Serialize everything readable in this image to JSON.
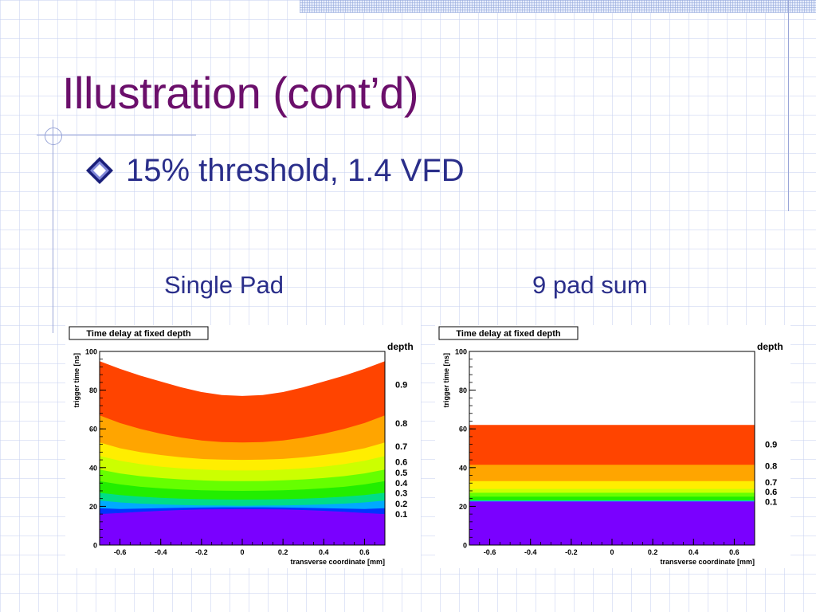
{
  "slide": {
    "title": "Illustration (cont’d)",
    "bullet": "15% threshold, 1.4 VFD",
    "caption_left": "Single Pad",
    "caption_right": "9 pad sum"
  },
  "colors": {
    "title": "#6b0f6b",
    "text": "#2a2e8a",
    "grid": "#c8d2f0"
  },
  "chart_data": [
    {
      "type": "area",
      "title": "Time delay at fixed depth",
      "xlabel": "transverse coordinate [mm]",
      "ylabel": "trigger time [ns]",
      "legend_title": "depth",
      "xlim": [
        -0.7,
        0.7
      ],
      "ylim": [
        0,
        100
      ],
      "xticks": [
        -0.6,
        -0.4,
        -0.2,
        0,
        0.2,
        0.4,
        0.6
      ],
      "xtick_labels": [
        "-0.6",
        "-0.4",
        "-0.2",
        "0",
        "0.2",
        "0.4",
        "0.6"
      ],
      "yticks": [
        0,
        20,
        40,
        60,
        80,
        100
      ],
      "ytick_labels": [
        "0",
        "20",
        "40",
        "60",
        "80",
        "100"
      ],
      "x": [
        -0.7,
        -0.6,
        -0.5,
        -0.4,
        -0.3,
        -0.2,
        -0.1,
        0,
        0.1,
        0.2,
        0.3,
        0.4,
        0.5,
        0.6,
        0.7
      ],
      "series": [
        {
          "name": "0.9",
          "color": "#ff4400",
          "top": [
            95,
            91,
            87.5,
            84.5,
            81.5,
            79,
            77.5,
            77,
            77.5,
            79,
            81.5,
            84.5,
            87.5,
            91,
            95
          ]
        },
        {
          "name": "0.8",
          "color": "#ffa500",
          "top": [
            67,
            63,
            60,
            57.5,
            55.5,
            54,
            53.2,
            53,
            53.2,
            54,
            55.5,
            57.5,
            60,
            63,
            67
          ]
        },
        {
          "name": "0.7",
          "color": "#ffee00",
          "top": [
            53,
            50,
            48,
            46.5,
            45.3,
            44.5,
            44.1,
            44,
            44.1,
            44.5,
            45.3,
            46.5,
            48,
            50,
            53
          ]
        },
        {
          "name": "0.6",
          "color": "#ccff00",
          "top": [
            46,
            43.5,
            41.8,
            40.5,
            39.6,
            39,
            38.6,
            38.5,
            38.6,
            39,
            39.6,
            40.5,
            41.8,
            43.5,
            46
          ]
        },
        {
          "name": "0.5",
          "color": "#66ff00",
          "top": [
            39,
            37,
            35.6,
            34.6,
            33.9,
            33.4,
            33.1,
            33,
            33.1,
            33.4,
            33.9,
            34.6,
            35.6,
            37,
            39
          ]
        },
        {
          "name": "0.4",
          "color": "#22ee00",
          "top": [
            33,
            31.3,
            30.1,
            29.3,
            28.7,
            28.3,
            28.1,
            28,
            28.1,
            28.3,
            28.7,
            29.3,
            30.1,
            31.3,
            33
          ]
        },
        {
          "name": "0.3",
          "color": "#00dd88",
          "top": [
            27,
            25.8,
            25,
            24.4,
            24,
            23.7,
            23.6,
            23.5,
            23.6,
            23.7,
            24,
            24.4,
            25,
            25.8,
            27
          ]
        },
        {
          "name": "0.2",
          "color": "#00aaff",
          "top": [
            23,
            22,
            21.4,
            21,
            20.7,
            20.5,
            20.4,
            20.3,
            20.4,
            20.5,
            20.7,
            21,
            21.4,
            22,
            23
          ]
        },
        {
          "name": "0.1",
          "color": "#0033ff",
          "top": [
            19,
            18.6,
            18.8,
            19,
            19.2,
            19.4,
            19.5,
            19.5,
            19.5,
            19.4,
            19.2,
            19,
            18.8,
            18.6,
            19
          ]
        },
        {
          "name": "",
          "color": "#7a00ff",
          "top": [
            16,
            16.6,
            17.2,
            17.7,
            18.1,
            18.4,
            18.5,
            18.6,
            18.5,
            18.4,
            18.1,
            17.7,
            17.2,
            16.6,
            16
          ]
        }
      ],
      "legend": [
        {
          "label": "0.9",
          "value": 83
        },
        {
          "label": "0.8",
          "value": 63
        },
        {
          "label": "0.7",
          "value": 51
        },
        {
          "label": "0.6",
          "value": 43
        },
        {
          "label": "0.5",
          "value": 37.5
        },
        {
          "label": "0.4",
          "value": 32
        },
        {
          "label": "0.3",
          "value": 27
        },
        {
          "label": "0.2",
          "value": 21.5
        },
        {
          "label": "0.1",
          "value": 16
        }
      ]
    },
    {
      "type": "area",
      "title": "Time delay at fixed depth",
      "xlabel": "transverse coordinate [mm]",
      "ylabel": "trigger time [ns]",
      "legend_title": "depth",
      "xlim": [
        -0.7,
        0.7
      ],
      "ylim": [
        0,
        100
      ],
      "xticks": [
        -0.6,
        -0.4,
        -0.2,
        0,
        0.2,
        0.4,
        0.6
      ],
      "xtick_labels": [
        "-0.6",
        "-0.4",
        "-0.2",
        "0",
        "0.2",
        "0.4",
        "0.6"
      ],
      "yticks": [
        0,
        20,
        40,
        60,
        80,
        100
      ],
      "ytick_labels": [
        "0",
        "20",
        "40",
        "60",
        "80",
        "100"
      ],
      "x": [
        -0.7,
        0.7
      ],
      "series": [
        {
          "name": "0.9",
          "color": "#ff4400",
          "top": [
            62,
            62
          ]
        },
        {
          "name": "0.8",
          "color": "#ffa500",
          "top": [
            41.5,
            41.5
          ]
        },
        {
          "name": "0.7",
          "color": "#ffee00",
          "top": [
            33,
            33
          ]
        },
        {
          "name": "0.6",
          "color": "#ccff00",
          "top": [
            29,
            29
          ]
        },
        {
          "name": "",
          "color": "#66ff00",
          "top": [
            27,
            27
          ]
        },
        {
          "name": "",
          "color": "#22ee00",
          "top": [
            25,
            25
          ]
        },
        {
          "name": "0.1",
          "color": "#00ccff",
          "top": [
            23,
            23
          ]
        },
        {
          "name": "",
          "color": "#7a00ff",
          "top": [
            22.5,
            22.5
          ]
        }
      ],
      "legend": [
        {
          "label": "0.9",
          "value": 52
        },
        {
          "label": "0.8",
          "value": 41
        },
        {
          "label": "0.7",
          "value": 32.5
        },
        {
          "label": "0.6",
          "value": 27.5
        },
        {
          "label": "0.1",
          "value": 22.5
        }
      ]
    }
  ]
}
